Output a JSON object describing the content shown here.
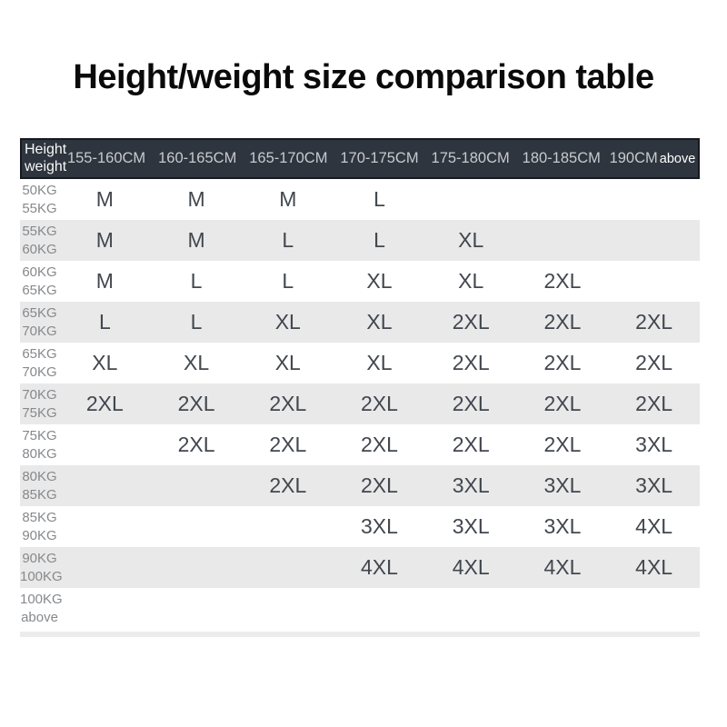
{
  "colors": {
    "page-bg": "#ffffff",
    "title-text": "#0a0a0a",
    "header-bg": "#2f353e",
    "header-border": "#161a20",
    "header-text": "#c7cacd",
    "corner-text": "#f7f8f9",
    "stripe-bg": "#e9e9e9",
    "weight-text": "#86898d",
    "size-text": "#42474f",
    "bottom-bar": "#ececec"
  },
  "chart_data": {
    "type": "table",
    "title": "Height/weight size comparison table",
    "corner_header_lines": [
      "Height",
      "weight"
    ],
    "height_columns": [
      "155-160CM",
      "160-165CM",
      "165-170CM",
      "170-175CM",
      "175-180CM",
      "180-185CM",
      "190CM above"
    ],
    "weight_rows": [
      {
        "weight_lines": [
          "50KG",
          "55KG"
        ],
        "sizes": [
          "M",
          "M",
          "M",
          "L",
          "",
          "",
          ""
        ]
      },
      {
        "weight_lines": [
          "55KG",
          "60KG"
        ],
        "sizes": [
          "M",
          "M",
          "L",
          "L",
          "XL",
          "",
          ""
        ]
      },
      {
        "weight_lines": [
          "60KG",
          "65KG"
        ],
        "sizes": [
          "M",
          "L",
          "L",
          "XL",
          "XL",
          "2XL",
          ""
        ]
      },
      {
        "weight_lines": [
          "65KG",
          "70KG"
        ],
        "sizes": [
          "L",
          "L",
          "XL",
          "XL",
          "2XL",
          "2XL",
          "2XL"
        ]
      },
      {
        "weight_lines": [
          "65KG",
          "70KG"
        ],
        "sizes": [
          "XL",
          "XL",
          "XL",
          "XL",
          "2XL",
          "2XL",
          "2XL"
        ]
      },
      {
        "weight_lines": [
          "70KG",
          "75KG"
        ],
        "sizes": [
          "2XL",
          "2XL",
          "2XL",
          "2XL",
          "2XL",
          "2XL",
          "2XL"
        ]
      },
      {
        "weight_lines": [
          "75KG",
          "80KG"
        ],
        "sizes": [
          "",
          "2XL",
          "2XL",
          "2XL",
          "2XL",
          "2XL",
          "3XL"
        ]
      },
      {
        "weight_lines": [
          "80KG",
          "85KG"
        ],
        "sizes": [
          "",
          "",
          "2XL",
          "2XL",
          "3XL",
          "3XL",
          "3XL"
        ]
      },
      {
        "weight_lines": [
          "85KG",
          "90KG"
        ],
        "sizes": [
          "",
          "",
          "",
          "3XL",
          "3XL",
          "3XL",
          "4XL"
        ]
      },
      {
        "weight_lines": [
          "90KG",
          "100KG"
        ],
        "sizes": [
          "",
          "",
          "",
          "4XL",
          "4XL",
          "4XL",
          "4XL"
        ]
      },
      {
        "weight_lines": [
          "100KG",
          "above"
        ],
        "sizes": [
          "",
          "",
          "",
          "",
          "",
          "",
          ""
        ]
      }
    ]
  }
}
